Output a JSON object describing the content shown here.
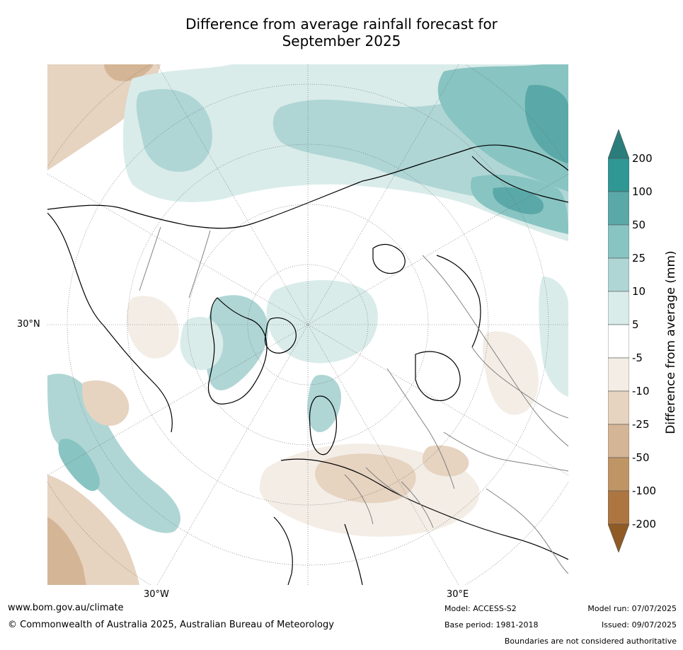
{
  "title_line1": "Difference from average rainfall forecast for",
  "title_line2": "September 2025",
  "map": {
    "lat_label_30n": "30°N",
    "lon_label_30w": "30°W",
    "lon_label_30e": "30°E"
  },
  "colorbar": {
    "title": "Difference from average (mm)",
    "ticks": [
      "200",
      "100",
      "50",
      "25",
      "10",
      "5",
      "-5",
      "-10",
      "-25",
      "-50",
      "-100",
      "-200"
    ],
    "colors": {
      "over": "#2a7d7b",
      "c1": "#2f9794",
      "c2": "#5aa9a8",
      "c3": "#88c4c2",
      "c4": "#afd6d5",
      "c5": "#d9ecea",
      "c6": "#ffffff",
      "c7": "#f3ede6",
      "c8": "#e6d3c0",
      "c9": "#d4b595",
      "c10": "#c09565",
      "c11": "#ad7641",
      "under": "#8f5a24"
    }
  },
  "footer": {
    "url": "www.bom.gov.au/climate",
    "copyright": "© Commonwealth of Australia 2025, Australian Bureau of Meteorology",
    "model": "Model: ACCESS-S2",
    "base_period": "Base period: 1981-2018",
    "model_run": "Model run: 07/07/2025",
    "issued": "Issued: 09/07/2025",
    "disclaimer": "Boundaries are not considered authoritative"
  }
}
